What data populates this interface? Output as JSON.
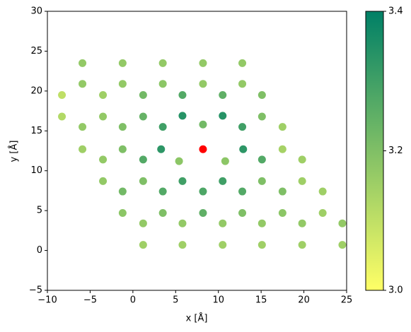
{
  "chart_data": {
    "type": "scatter",
    "xlabel": "x [Å]",
    "ylabel": "y [Å]",
    "xlim": [
      -10,
      25
    ],
    "ylim": [
      -5,
      30
    ],
    "xticks": [
      {
        "value": -10,
        "label": "−10"
      },
      {
        "value": -5,
        "label": "−5"
      },
      0,
      5,
      10,
      15,
      20,
      25
    ],
    "yticks": [
      {
        "value": -5,
        "label": "−5"
      },
      0,
      5,
      10,
      15,
      20,
      25,
      30
    ],
    "colormap": "summer_r",
    "clim": [
      3.0,
      3.4
    ],
    "cticks": [
      {
        "value": 3.0,
        "label": "3.0"
      },
      3.2,
      3.4
    ],
    "series": [
      {
        "x": [
          -5.9,
          -1.2,
          3.5,
          8.2,
          12.8,
          -5.9,
          -1.2,
          3.5,
          8.2,
          12.8,
          -8.3,
          -3.5,
          1.2,
          5.8,
          10.5,
          15.1,
          -8.3,
          -3.5,
          1.2,
          5.8,
          10.5,
          15.1,
          -5.9,
          -1.2,
          3.5,
          8.2,
          12.8,
          17.5,
          -5.9,
          -1.2,
          3.3,
          12.9,
          17.5,
          -3.5,
          1.2,
          5.4,
          10.8,
          15.1,
          19.8,
          -3.5,
          1.2,
          5.8,
          10.5,
          15.1,
          19.8,
          -1.2,
          3.5,
          8.2,
          12.8,
          17.5,
          22.2,
          -1.2,
          3.5,
          8.2,
          12.8,
          17.5,
          22.2,
          1.2,
          5.8,
          10.5,
          15.1,
          19.8,
          24.5,
          1.2,
          5.8,
          10.5,
          15.1,
          19.8,
          24.5
        ],
        "y": [
          23.5,
          23.5,
          23.5,
          23.5,
          23.5,
          20.9,
          20.9,
          20.9,
          20.9,
          20.9,
          19.5,
          19.5,
          19.5,
          19.5,
          19.5,
          19.5,
          16.8,
          16.8,
          16.8,
          16.9,
          16.9,
          16.8,
          15.5,
          15.5,
          15.5,
          15.8,
          15.5,
          15.5,
          12.7,
          12.7,
          12.7,
          12.7,
          12.7,
          11.4,
          11.4,
          11.2,
          11.2,
          11.4,
          11.4,
          8.7,
          8.7,
          8.7,
          8.7,
          8.7,
          8.7,
          7.4,
          7.4,
          7.4,
          7.4,
          7.4,
          7.4,
          4.7,
          4.7,
          4.7,
          4.7,
          4.7,
          4.7,
          3.4,
          3.4,
          3.4,
          3.4,
          3.4,
          3.4,
          0.7,
          0.7,
          0.7,
          0.7,
          0.7,
          0.7
        ],
        "c": [
          3.17,
          3.17,
          3.17,
          3.17,
          3.17,
          3.17,
          3.17,
          3.18,
          3.17,
          3.17,
          3.1,
          3.15,
          3.22,
          3.27,
          3.25,
          3.2,
          3.12,
          3.17,
          3.24,
          3.34,
          3.34,
          3.2,
          3.17,
          3.2,
          3.3,
          3.22,
          3.3,
          3.15,
          3.15,
          3.2,
          3.33,
          3.33,
          3.14,
          3.17,
          3.27,
          3.18,
          3.18,
          3.27,
          3.15,
          3.17,
          3.2,
          3.3,
          3.3,
          3.2,
          3.15,
          3.22,
          3.27,
          3.28,
          3.27,
          3.2,
          3.15,
          3.18,
          3.2,
          3.25,
          3.2,
          3.18,
          3.15,
          3.17,
          3.17,
          3.17,
          3.17,
          3.17,
          3.17,
          3.15,
          3.15,
          3.15,
          3.15,
          3.15,
          3.15
        ]
      },
      {
        "color": "#ff0000",
        "x": [
          8.2
        ],
        "y": [
          12.7
        ]
      }
    ]
  }
}
